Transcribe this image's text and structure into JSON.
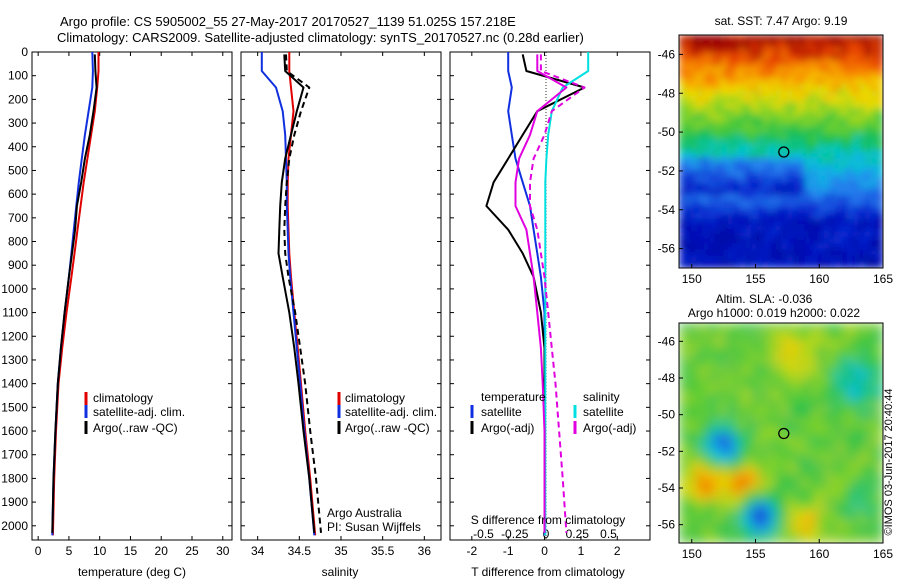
{
  "header": {
    "title_line1": "Argo profile: CS 5905002_55 27-May-2017 20170527_1139 51.025S 157.218E",
    "title_line2": "Climatology: CARS2009. Satellite-adjusted climatology: synTS_20170527.nc (0.28d earlier)"
  },
  "colors": {
    "climatology": "#e00000",
    "satellite_adj": "#1030e0",
    "argo": "#000000",
    "salinity_satellite": "#00e0e0",
    "salinity_argo": "#e000e0"
  },
  "chart_data": [
    {
      "type": "line",
      "id": "temperature",
      "xlabel": "temperature (deg C)",
      "ylabel": "",
      "xlim": [
        -1,
        31.5
      ],
      "ylim": [
        2060,
        0
      ],
      "xticks": [
        0,
        5,
        10,
        15,
        20,
        25,
        30
      ],
      "yticks": [
        0,
        100,
        200,
        300,
        400,
        500,
        600,
        700,
        800,
        900,
        1000,
        1100,
        1200,
        1300,
        1400,
        1500,
        1600,
        1700,
        1800,
        1900,
        2000
      ],
      "legend": {
        "placement": "lower-right",
        "entries": [
          "climatology",
          "satellite-adj. clim.",
          "Argo(..raw -QC)"
        ]
      },
      "series": [
        {
          "name": "climatology",
          "color": "#e00000",
          "dash": "",
          "x": [
            9.8,
            9.8,
            9.6,
            9.2,
            8.6,
            8.0,
            7.4,
            6.9,
            6.4,
            5.9,
            5.4,
            4.6,
            3.9,
            3.3,
            2.9,
            2.6,
            2.4
          ],
          "y": [
            0,
            80,
            150,
            250,
            350,
            450,
            550,
            650,
            750,
            850,
            950,
            1100,
            1250,
            1400,
            1600,
            1800,
            2040
          ]
        },
        {
          "name": "satellite-adj. clim.",
          "color": "#1030e0",
          "dash": "",
          "x": [
            8.8,
            8.9,
            8.8,
            8.2,
            7.6,
            7.1,
            6.6,
            6.2,
            5.8,
            5.4,
            5.0,
            4.3,
            3.7,
            3.2,
            2.8,
            2.5,
            2.3
          ],
          "y": [
            0,
            80,
            150,
            250,
            350,
            450,
            550,
            650,
            750,
            850,
            950,
            1100,
            1250,
            1400,
            1600,
            1800,
            2040
          ]
        },
        {
          "name": "Argo(..raw -QC)",
          "color": "#000000",
          "dash": "",
          "x": [
            9.2,
            9.3,
            9.5,
            9.0,
            8.4,
            7.6,
            7.0,
            6.3,
            6.0,
            5.5,
            5.0,
            4.3,
            3.7,
            3.2,
            2.8,
            2.5,
            2.3
          ],
          "y": [
            10,
            80,
            150,
            250,
            350,
            450,
            550,
            650,
            750,
            850,
            950,
            1100,
            1250,
            1400,
            1600,
            1800,
            2030
          ]
        }
      ]
    },
    {
      "type": "line",
      "id": "salinity",
      "xlabel": "salinity",
      "ylabel": "",
      "xlim": [
        33.8,
        36.2
      ],
      "ylim": [
        2060,
        0
      ],
      "xticks": [
        34,
        34.5,
        35,
        35.5,
        36
      ],
      "annotations": [
        "Argo Australia",
        "PI: Susan Wijffels"
      ],
      "legend": {
        "placement": "lower-right",
        "entries": [
          "climatology",
          "satellite-adj. clim.",
          "Argo(..raw -QC)"
        ]
      },
      "series": [
        {
          "name": "climatology",
          "color": "#e00000",
          "dash": "",
          "x": [
            34.38,
            34.38,
            34.4,
            34.43,
            34.4,
            34.37,
            34.36,
            34.36,
            34.37,
            34.38,
            34.4,
            34.44,
            34.48,
            34.52,
            34.57,
            34.63,
            34.69
          ],
          "y": [
            0,
            80,
            150,
            250,
            350,
            450,
            550,
            650,
            750,
            850,
            950,
            1100,
            1250,
            1400,
            1600,
            1800,
            2040
          ]
        },
        {
          "name": "satellite-adj. clim.",
          "color": "#1030e0",
          "dash": "",
          "x": [
            34.05,
            34.05,
            34.22,
            34.3,
            34.33,
            34.34,
            34.35,
            34.35,
            34.36,
            34.37,
            34.39,
            34.43,
            34.47,
            34.51,
            34.56,
            34.62,
            34.68
          ],
          "y": [
            0,
            80,
            150,
            250,
            350,
            450,
            550,
            650,
            750,
            850,
            950,
            1100,
            1250,
            1400,
            1600,
            1800,
            2040
          ]
        },
        {
          "name": "Argo(..raw -QC)",
          "color": "#000000",
          "dash": "",
          "x": [
            34.32,
            34.33,
            34.55,
            34.47,
            34.4,
            34.33,
            34.29,
            34.27,
            34.26,
            34.25,
            34.3,
            34.38,
            34.44,
            34.49,
            34.55,
            34.62,
            34.68
          ],
          "y": [
            10,
            80,
            150,
            250,
            350,
            450,
            550,
            650,
            750,
            850,
            950,
            1100,
            1250,
            1400,
            1600,
            1800,
            2030
          ]
        },
        {
          "name": "Argo(..raw -QC)",
          "color": "#000000",
          "dash": "6,4",
          "x": [
            34.34,
            34.35,
            34.62,
            34.52,
            34.44,
            34.38,
            34.35,
            34.33,
            34.32,
            34.33,
            34.37,
            34.45,
            34.51,
            34.57,
            34.63,
            34.7,
            34.76
          ],
          "y": [
            10,
            80,
            150,
            250,
            350,
            450,
            550,
            650,
            750,
            850,
            950,
            1100,
            1250,
            1400,
            1600,
            1800,
            2030
          ]
        }
      ]
    },
    {
      "type": "line",
      "id": "difference",
      "xlabel": "T difference from climatology",
      "top_xlabel": "S difference from climatology",
      "ylabel": "",
      "xlim": [
        -2.6,
        2.9
      ],
      "ylim": [
        2060,
        0
      ],
      "xticks": [
        -2,
        -1,
        0,
        1,
        2
      ],
      "s_ticks": [
        -0.5,
        -0.25,
        0,
        0.25,
        0.5
      ],
      "s_tick_labels": [
        "-0.5",
        "-0.25",
        "0",
        "0.25",
        "0.5"
      ],
      "legend": {
        "placement": "lower-center",
        "temperature_heading": "temperature",
        "salinity_heading": "salinity",
        "entries": [
          "satellite",
          "Argo(-adj)",
          "satellite",
          "Argo(-adj)"
        ]
      },
      "series": [
        {
          "name": "temperature satellite",
          "color": "#1030e0",
          "dash": "",
          "x": [
            -1.0,
            -1.0,
            -0.9,
            -1.0,
            -0.9,
            -0.8,
            -0.6,
            -0.4,
            -0.3,
            -0.2,
            -0.1,
            0,
            0,
            0,
            0,
            0,
            0
          ],
          "y": [
            0,
            80,
            150,
            250,
            350,
            450,
            550,
            650,
            750,
            850,
            950,
            1100,
            1250,
            1400,
            1600,
            1800,
            2040
          ]
        },
        {
          "name": "temperature Argo(-adj)",
          "color": "#000000",
          "dash": "",
          "x": [
            -0.6,
            -0.5,
            1.1,
            -0.2,
            -0.6,
            -1.0,
            -1.4,
            -1.6,
            -1.0,
            -0.6,
            -0.3,
            -0.1,
            0,
            0,
            0,
            0,
            0
          ],
          "y": [
            10,
            80,
            150,
            250,
            350,
            450,
            550,
            650,
            750,
            850,
            950,
            1100,
            1250,
            1400,
            1600,
            1800,
            2030
          ]
        },
        {
          "name": "salinity satellite",
          "color": "#00e0e0",
          "dash": "",
          "x": [
            1.2,
            1.2,
            0.5,
            0.2,
            0.1,
            0.05,
            0.02,
            0.02,
            0.02,
            0.02,
            0.02,
            0.02,
            0.02,
            0.02,
            0.02,
            0.02,
            0.02
          ],
          "y": [
            0,
            80,
            150,
            250,
            350,
            450,
            550,
            650,
            750,
            850,
            950,
            1100,
            1250,
            1400,
            1600,
            1800,
            2040
          ]
        },
        {
          "name": "salinity Argo(-adj)",
          "color": "#e000e0",
          "dash": "",
          "x": [
            -0.2,
            -0.2,
            0.6,
            -0.2,
            -0.4,
            -0.7,
            -0.8,
            -0.8,
            -0.5,
            -0.4,
            -0.3,
            -0.2,
            -0.1,
            -0.05,
            0,
            0,
            0
          ],
          "y": [
            10,
            80,
            150,
            250,
            350,
            450,
            550,
            650,
            750,
            850,
            950,
            1100,
            1250,
            1400,
            1600,
            1800,
            2030
          ]
        },
        {
          "name": "salinity Argo(-adj)",
          "color": "#e000e0",
          "dash": "6,4",
          "x": [
            -0.1,
            -0.1,
            1.1,
            0.2,
            0.0,
            -0.3,
            -0.4,
            -0.4,
            -0.2,
            -0.1,
            0.0,
            0.1,
            0.2,
            0.3,
            0.4,
            0.5,
            0.6
          ],
          "y": [
            10,
            80,
            150,
            250,
            350,
            450,
            550,
            650,
            750,
            850,
            950,
            1100,
            1250,
            1400,
            1600,
            1800,
            2030
          ]
        }
      ]
    },
    {
      "type": "heatmap",
      "id": "sst_map",
      "title": "sat. SST: 7.47 Argo: 9.19",
      "xlim": [
        149,
        165
      ],
      "ylim": [
        -57,
        -45
      ],
      "xticks": [
        150,
        155,
        160,
        165
      ],
      "yticks": [
        -46,
        -48,
        -50,
        -52,
        -54,
        -56
      ],
      "marker": {
        "lon": 157.218,
        "lat": -51.025
      }
    },
    {
      "type": "heatmap",
      "id": "sla_map",
      "title_line1": "Altim. SLA: -0.036",
      "title_line2": "Argo h1000: 0.019 h2000: 0.022",
      "side_label": "©IMOS 03-Jun-2017 20:40:44",
      "xlim": [
        149,
        165
      ],
      "ylim": [
        -57,
        -45
      ],
      "xticks": [
        150,
        155,
        160,
        165
      ],
      "yticks": [
        -46,
        -48,
        -50,
        -52,
        -54,
        -56
      ],
      "marker": {
        "lon": 157.218,
        "lat": -51.025
      }
    }
  ]
}
